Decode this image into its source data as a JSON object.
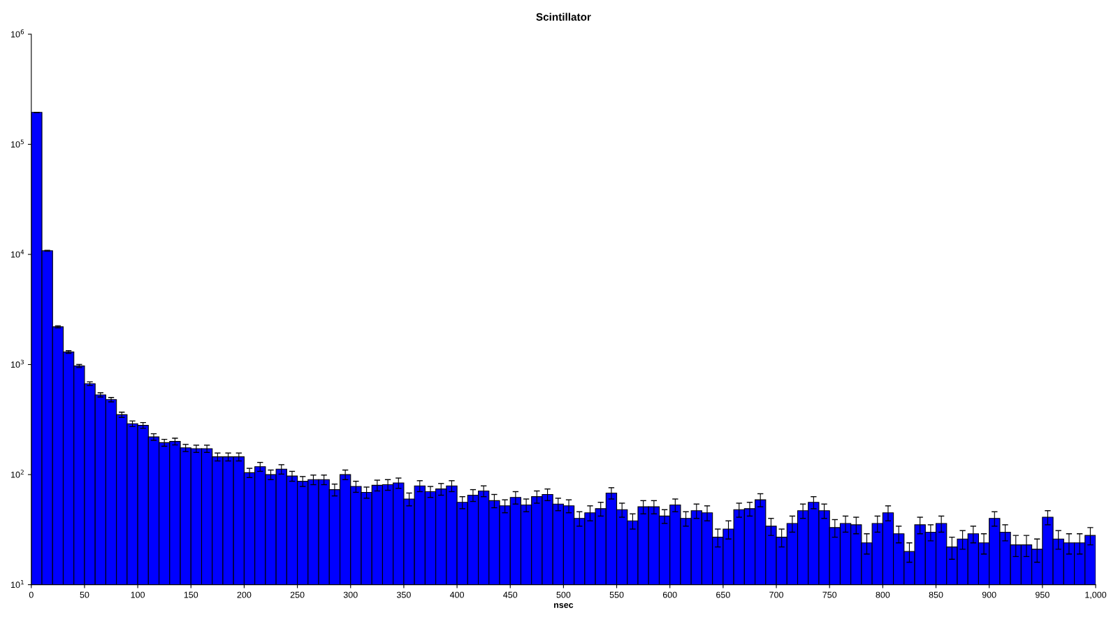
{
  "chart_data": {
    "type": "histogram",
    "title": "Scintillator",
    "xlabel": "nsec",
    "bins": [
      0,
      10,
      20,
      30,
      40,
      50,
      60,
      70,
      80,
      90,
      100,
      110,
      120,
      130,
      140,
      150,
      160,
      170,
      180,
      190,
      200,
      210,
      220,
      230,
      240,
      250,
      260,
      270,
      280,
      290,
      300,
      310,
      320,
      330,
      340,
      350,
      360,
      370,
      380,
      390,
      400,
      410,
      420,
      430,
      440,
      450,
      460,
      470,
      480,
      490,
      500,
      510,
      520,
      530,
      540,
      550,
      560,
      570,
      580,
      590,
      600,
      610,
      620,
      630,
      640,
      650,
      660,
      670,
      680,
      690,
      700,
      710,
      720,
      730,
      740,
      750,
      760,
      770,
      780,
      790,
      800,
      810,
      820,
      830,
      840,
      850,
      860,
      870,
      880,
      890,
      900,
      910,
      920,
      930,
      940,
      950,
      960,
      970,
      980,
      990,
      1000
    ],
    "values": [
      195000,
      10800,
      2200,
      1300,
      970,
      670,
      530,
      480,
      350,
      290,
      280,
      220,
      195,
      200,
      175,
      172,
      172,
      145,
      145,
      145,
      104,
      118,
      100,
      112,
      97,
      87,
      90,
      90,
      73,
      100,
      78,
      69,
      80,
      81,
      84,
      60,
      79,
      70,
      74,
      79,
      56,
      65,
      71,
      58,
      52,
      62,
      53,
      63,
      66,
      54,
      52,
      40,
      45,
      49,
      68,
      48,
      38,
      51,
      51,
      42,
      53,
      40,
      47,
      45,
      27,
      32,
      48,
      49,
      59,
      34,
      27,
      36,
      47,
      56,
      47,
      33,
      36,
      35,
      24,
      36,
      45,
      29,
      20,
      35,
      30,
      36,
      22,
      26,
      29,
      24,
      40,
      30,
      23,
      23,
      21,
      41,
      26,
      24,
      24,
      28
    ],
    "errors": [
      442,
      104,
      47,
      36,
      31,
      26,
      23,
      22,
      19,
      17,
      17,
      15,
      14,
      14,
      13,
      13,
      13,
      12,
      12,
      12,
      10,
      11,
      10,
      11,
      10,
      9,
      9,
      9,
      9,
      10,
      9,
      8,
      9,
      9,
      9,
      8,
      9,
      8,
      9,
      9,
      7,
      8,
      8,
      8,
      7,
      8,
      7,
      8,
      8,
      7,
      7,
      6,
      7,
      7,
      8,
      7,
      6,
      7,
      7,
      6,
      7,
      6,
      7,
      7,
      5,
      6,
      7,
      7,
      8,
      6,
      5,
      6,
      7,
      7,
      7,
      6,
      6,
      6,
      5,
      6,
      7,
      5,
      4,
      6,
      5,
      6,
      5,
      5,
      5,
      5,
      6,
      5,
      5,
      5,
      5,
      6,
      5,
      5,
      5,
      5
    ],
    "color": "#0000ff",
    "log": "y",
    "ylim": [
      10,
      1000000
    ],
    "yticks": [
      {
        "value": 10,
        "label": "10$^{1}$"
      },
      {
        "value": 100,
        "label": "10$^{2}$"
      },
      {
        "value": 1000,
        "label": "10$^{3}$"
      },
      {
        "value": 10000,
        "label": "10$^{4}$"
      },
      {
        "value": 100000,
        "label": "10$^{5}$"
      },
      {
        "value": 1000000,
        "label": "10$^{6}$"
      }
    ],
    "xlim": [
      0,
      1000
    ],
    "xticks": [
      0,
      50,
      100,
      150,
      200,
      250,
      300,
      350,
      400,
      450,
      500,
      550,
      600,
      650,
      700,
      750,
      800,
      850,
      900,
      950,
      {
        "value": 1000,
        "label": "1,000"
      }
    ],
    "grid": false
  }
}
